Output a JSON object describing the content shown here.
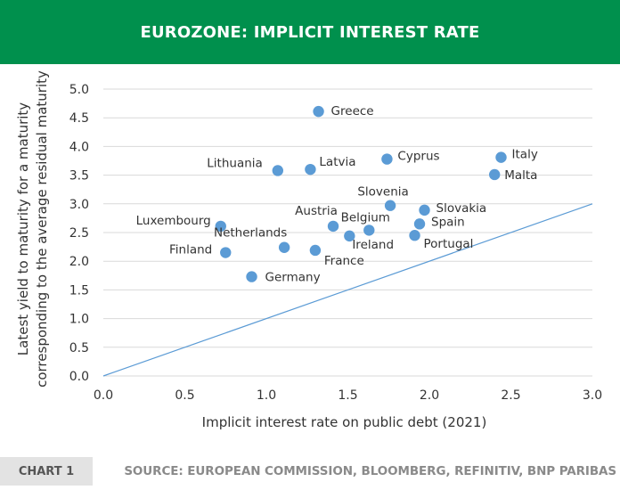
{
  "header": {
    "title": "EUROZONE: IMPLICIT INTEREST RATE"
  },
  "footer": {
    "badge": "CHART 1",
    "source": "SOURCE: EUROPEAN COMMISSION, BLOOMBERG, REFINITIV, BNP PARIBAS"
  },
  "colors": {
    "header_bg": "#00904d",
    "point": "#5b9bd5",
    "line": "#5b9bd5"
  },
  "chart_data": {
    "type": "scatter",
    "xlabel": "Implicit interest rate on public debt (2021)",
    "ylabel": [
      "Latest yield to maturity for a maturity",
      "corresponding to the average residual maturity"
    ],
    "xlim": [
      0.0,
      3.0
    ],
    "ylim": [
      0.0,
      5.0
    ],
    "xticks": [
      "0.0",
      "0.5",
      "1.0",
      "1.5",
      "2.0",
      "2.5",
      "3.0"
    ],
    "yticks": [
      "0.0",
      "0.5",
      "1.0",
      "1.5",
      "2.0",
      "2.5",
      "3.0",
      "3.5",
      "4.0",
      "4.5",
      "5.0"
    ],
    "grid": "horizontal",
    "reference_line": {
      "from": [
        0.0,
        0.0
      ],
      "to": [
        3.0,
        3.0
      ]
    },
    "points": [
      {
        "label": "Greece",
        "x": 1.32,
        "y": 4.61
      },
      {
        "label": "Italy",
        "x": 2.44,
        "y": 3.81
      },
      {
        "label": "Cyprus",
        "x": 1.74,
        "y": 3.78
      },
      {
        "label": "Latvia",
        "x": 1.27,
        "y": 3.6
      },
      {
        "label": "Lithuania",
        "x": 1.07,
        "y": 3.58
      },
      {
        "label": "Malta",
        "x": 2.4,
        "y": 3.51
      },
      {
        "label": "Slovenia",
        "x": 1.76,
        "y": 2.97
      },
      {
        "label": "Slovakia",
        "x": 1.97,
        "y": 2.89
      },
      {
        "label": "Spain",
        "x": 1.94,
        "y": 2.65
      },
      {
        "label": "Austria",
        "x": 1.41,
        "y": 2.61
      },
      {
        "label": "Luxembourg",
        "x": 0.72,
        "y": 2.61
      },
      {
        "label": "Belgium",
        "x": 1.63,
        "y": 2.54
      },
      {
        "label": "Portugal",
        "x": 1.91,
        "y": 2.45
      },
      {
        "label": "Ireland",
        "x": 1.51,
        "y": 2.44
      },
      {
        "label": "Netherlands",
        "x": 1.11,
        "y": 2.24
      },
      {
        "label": "France",
        "x": 1.3,
        "y": 2.19
      },
      {
        "label": "Finland",
        "x": 0.75,
        "y": 2.15
      },
      {
        "label": "Germany",
        "x": 0.91,
        "y": 1.73
      }
    ]
  }
}
